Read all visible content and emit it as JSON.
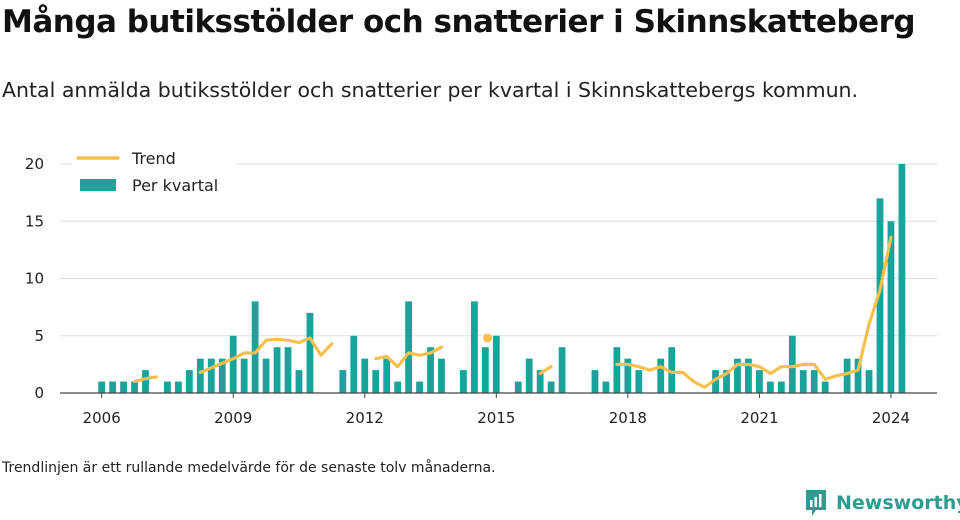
{
  "title": "Många butiksstölder och snatterier i Skinnskatteberg",
  "subtitle": "Antal anmälda butiksstölder och snatterier per kvartal i Skinnskattebergs kommun.",
  "footnote": "Trendlinjen är ett rullande medelvärde för de senaste tolv månaderna.",
  "brand": {
    "name": "Newsworthy",
    "icon": "newsworthy-logo-icon"
  },
  "colors": {
    "bar": "#1aa39a",
    "trend": "#f6c04e",
    "grid": "#dddddd",
    "axis": "#444444",
    "brand": "#2a9d8f"
  },
  "chart_data": {
    "type": "bar",
    "x_unit": "year",
    "ylim": [
      0,
      20
    ],
    "xlim": [
      2005.05,
      2025.05
    ],
    "yticks": [
      0,
      5,
      10,
      15,
      20
    ],
    "xticks": [
      2006,
      2009,
      2012,
      2015,
      2018,
      2021,
      2024
    ],
    "legend": {
      "position": "top-left",
      "items": [
        "Trend",
        "Per kvartal"
      ]
    },
    "series": [
      {
        "name": "Per kvartal",
        "type": "bar",
        "points": [
          [
            2006.0,
            1
          ],
          [
            2006.25,
            1
          ],
          [
            2006.5,
            1
          ],
          [
            2006.75,
            1
          ],
          [
            2007.0,
            2
          ],
          [
            2007.25,
            0
          ],
          [
            2007.5,
            1
          ],
          [
            2007.75,
            1
          ],
          [
            2008.0,
            2
          ],
          [
            2008.25,
            3
          ],
          [
            2008.5,
            3
          ],
          [
            2008.75,
            3
          ],
          [
            2009.0,
            5
          ],
          [
            2009.25,
            3
          ],
          [
            2009.5,
            8
          ],
          [
            2009.75,
            3
          ],
          [
            2010.0,
            4
          ],
          [
            2010.25,
            4
          ],
          [
            2010.5,
            2
          ],
          [
            2010.75,
            7
          ],
          [
            2011.0,
            0
          ],
          [
            2011.25,
            0
          ],
          [
            2011.5,
            2
          ],
          [
            2011.75,
            5
          ],
          [
            2012.0,
            3
          ],
          [
            2012.25,
            2
          ],
          [
            2012.5,
            3
          ],
          [
            2012.75,
            1
          ],
          [
            2013.0,
            8
          ],
          [
            2013.25,
            1
          ],
          [
            2013.5,
            4
          ],
          [
            2013.75,
            3
          ],
          [
            2014.0,
            0
          ],
          [
            2014.25,
            2
          ],
          [
            2014.5,
            8
          ],
          [
            2014.75,
            4
          ],
          [
            2015.0,
            5
          ],
          [
            2015.25,
            0
          ],
          [
            2015.5,
            1
          ],
          [
            2015.75,
            3
          ],
          [
            2016.0,
            2
          ],
          [
            2016.25,
            1
          ],
          [
            2016.5,
            4
          ],
          [
            2016.75,
            0
          ],
          [
            2017.0,
            0
          ],
          [
            2017.25,
            2
          ],
          [
            2017.5,
            1
          ],
          [
            2017.75,
            4
          ],
          [
            2018.0,
            3
          ],
          [
            2018.25,
            2
          ],
          [
            2018.5,
            0
          ],
          [
            2018.75,
            3
          ],
          [
            2019.0,
            4
          ],
          [
            2019.25,
            0
          ],
          [
            2019.5,
            0
          ],
          [
            2019.75,
            0
          ],
          [
            2020.0,
            2
          ],
          [
            2020.25,
            2
          ],
          [
            2020.5,
            3
          ],
          [
            2020.75,
            3
          ],
          [
            2021.0,
            2
          ],
          [
            2021.25,
            1
          ],
          [
            2021.5,
            1
          ],
          [
            2021.75,
            5
          ],
          [
            2022.0,
            2
          ],
          [
            2022.25,
            2
          ],
          [
            2022.5,
            1
          ],
          [
            2022.75,
            0
          ],
          [
            2023.0,
            3
          ],
          [
            2023.25,
            3
          ],
          [
            2023.5,
            2
          ],
          [
            2023.75,
            17
          ],
          [
            2024.0,
            15
          ],
          [
            2024.25,
            20
          ]
        ]
      },
      {
        "name": "Trend",
        "type": "line",
        "segments": [
          [
            [
              2006.75,
              1.0
            ],
            [
              2007.0,
              1.25
            ],
            [
              2007.25,
              1.4
            ]
          ],
          [
            [
              2008.25,
              1.8
            ],
            [
              2008.5,
              2.2
            ],
            [
              2008.75,
              2.6
            ],
            [
              2009.0,
              3.0
            ],
            [
              2009.25,
              3.5
            ],
            [
              2009.5,
              3.5
            ],
            [
              2009.75,
              4.6
            ],
            [
              2010.0,
              4.7
            ],
            [
              2010.25,
              4.6
            ],
            [
              2010.5,
              4.4
            ],
            [
              2010.75,
              4.8
            ],
            [
              2011.0,
              3.3
            ],
            [
              2011.25,
              4.3
            ]
          ],
          [
            [
              2012.25,
              3.0
            ],
            [
              2012.5,
              3.2
            ],
            [
              2012.75,
              2.3
            ],
            [
              2013.0,
              3.5
            ],
            [
              2013.25,
              3.3
            ],
            [
              2013.5,
              3.5
            ],
            [
              2013.75,
              4.0
            ]
          ],
          [
            [
              2016.0,
              1.7
            ],
            [
              2016.25,
              2.3
            ]
          ],
          [
            [
              2017.75,
              2.5
            ],
            [
              2018.0,
              2.5
            ],
            [
              2018.25,
              2.3
            ],
            [
              2018.5,
              2.0
            ],
            [
              2018.75,
              2.3
            ],
            [
              2019.0,
              1.8
            ],
            [
              2019.25,
              1.8
            ],
            [
              2019.5,
              1.0
            ],
            [
              2019.75,
              0.5
            ],
            [
              2020.0,
              1.2
            ],
            [
              2020.25,
              1.7
            ],
            [
              2020.5,
              2.5
            ],
            [
              2020.75,
              2.5
            ],
            [
              2021.0,
              2.3
            ],
            [
              2021.25,
              1.7
            ],
            [
              2021.5,
              2.3
            ],
            [
              2021.75,
              2.3
            ],
            [
              2022.0,
              2.5
            ],
            [
              2022.25,
              2.5
            ],
            [
              2022.5,
              1.2
            ],
            [
              2022.75,
              1.5
            ],
            [
              2023.0,
              1.7
            ],
            [
              2023.25,
              2.0
            ],
            [
              2023.5,
              6.0
            ],
            [
              2023.75,
              9.0
            ],
            [
              2024.0,
              13.6
            ]
          ]
        ],
        "points": [
          [
            2014.8,
            4.8
          ]
        ]
      }
    ]
  }
}
